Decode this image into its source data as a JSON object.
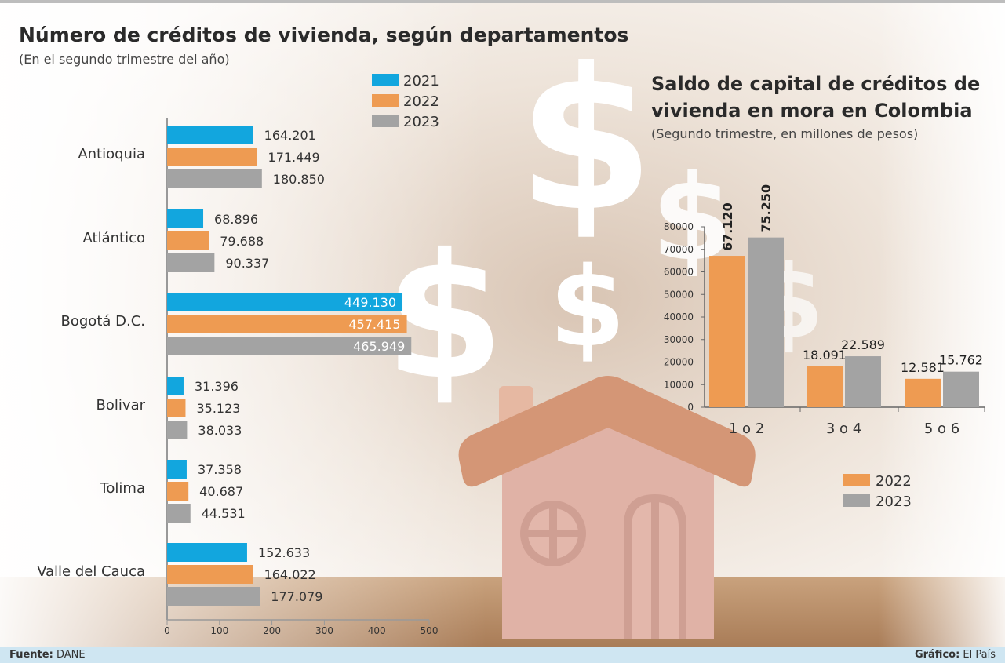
{
  "colors": {
    "2021": "#12a6de",
    "2022": "#ee9b52",
    "2023": "#a3a3a3"
  },
  "left": {
    "title": "Número de créditos de vivienda, según departamentos",
    "subtitle": "(En el segundo trimestre del año)"
  },
  "right": {
    "title_line1": "Saldo de capital de créditos de",
    "title_line2": "vivienda en mora en Colombia",
    "subtitle": "(Segundo trimestre, en millones de pesos)"
  },
  "footer": {
    "source_label": "Fuente:",
    "source_value": "DANE",
    "credit_label": "Gráfico:",
    "credit_value": "El País"
  },
  "chart_data": [
    {
      "type": "bar",
      "orientation": "horizontal",
      "title": "Número de créditos de vivienda, según departamentos",
      "subtitle": "(En el segundo trimestre del año)",
      "categories": [
        "Antioquia",
        "Atlántico",
        "Bogotá D.C.",
        "Bolivar",
        "Tolima",
        "Valle del Cauca"
      ],
      "series": [
        {
          "name": "2021",
          "values": [
            164.201,
            68.896,
            449.13,
            31.396,
            37.358,
            152.633
          ],
          "labels": [
            "164.201",
            "68.896",
            "449.130",
            "31.396",
            "37.358",
            "152.633"
          ]
        },
        {
          "name": "2022",
          "values": [
            171.449,
            79.688,
            457.415,
            35.123,
            40.687,
            164.022
          ],
          "labels": [
            "171.449",
            "79.688",
            "457.415",
            "35.123",
            "40.687",
            "164.022"
          ]
        },
        {
          "name": "2023",
          "values": [
            180.85,
            90.337,
            465.949,
            38.033,
            44.531,
            177.079
          ],
          "labels": [
            "180.850",
            "90.337",
            "465.949",
            "38.033",
            "44.531",
            "177.079"
          ]
        }
      ],
      "xlim": [
        0,
        500
      ],
      "xticks": [
        "0",
        "100",
        "200",
        "300",
        "400",
        "500"
      ],
      "legend_position": "top-right",
      "grid": false
    },
    {
      "type": "bar",
      "title": "Saldo de capital de créditos de vivienda en mora en Colombia",
      "subtitle": "(Segundo trimestre, en millones de pesos)",
      "categories": [
        "1 o 2",
        "3 o 4",
        "5 o 6"
      ],
      "series": [
        {
          "name": "2022",
          "values": [
            67120,
            18091,
            12581
          ],
          "labels": [
            "67.120",
            "18.091",
            "12.581"
          ]
        },
        {
          "name": "2023",
          "values": [
            75250,
            22589,
            15762
          ],
          "labels": [
            "75.250",
            "22.589",
            "15.762"
          ]
        }
      ],
      "ylim": [
        0,
        80000
      ],
      "yticks": [
        "0",
        "10000",
        "20000",
        "30000",
        "40000",
        "50000",
        "60000",
        "70000",
        "80000"
      ],
      "legend_position": "bottom-right",
      "grid": false
    }
  ]
}
